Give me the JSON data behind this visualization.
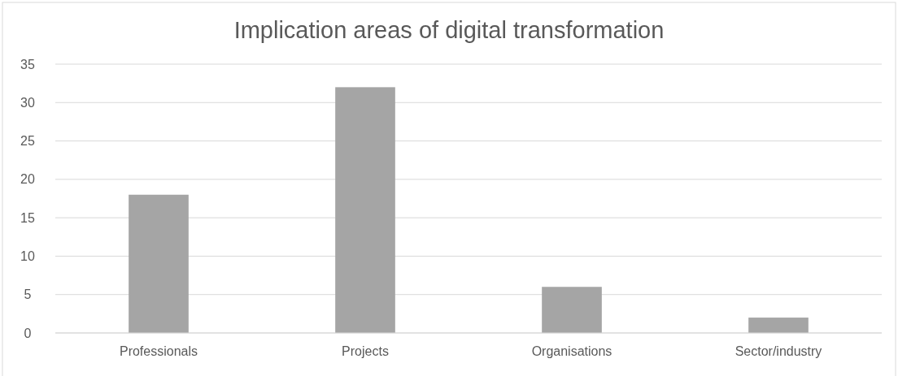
{
  "chart_data": {
    "type": "bar",
    "title": "Implication areas of digital transformation",
    "categories": [
      "Professionals",
      "Projects",
      "Organisations",
      "Sector/industry"
    ],
    "values": [
      18,
      32,
      6,
      2
    ],
    "color": "#a5a5a5",
    "ylim": [
      0,
      35
    ],
    "yticks": [
      0,
      5,
      10,
      15,
      20,
      25,
      30,
      35
    ],
    "grid": "y"
  }
}
